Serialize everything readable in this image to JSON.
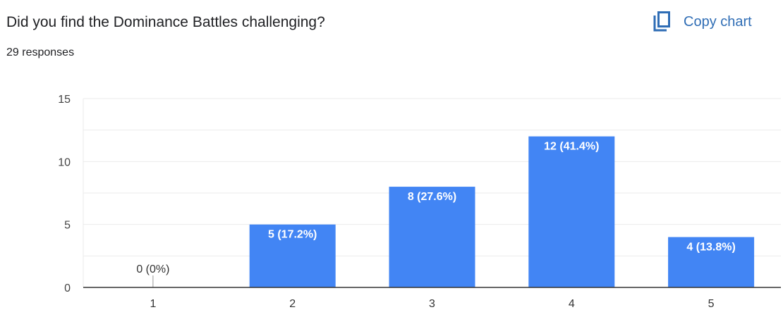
{
  "header": {
    "title": "Did you find the Dominance Battles challenging?",
    "responses": "29 responses",
    "copy_label": "Copy chart",
    "copy_icon": "copy-icon"
  },
  "chart_data": {
    "type": "bar",
    "categories": [
      "1",
      "2",
      "3",
      "4",
      "5"
    ],
    "values": [
      0,
      5,
      8,
      12,
      4
    ],
    "data_labels": [
      "0 (0%)",
      "5 (17.2%)",
      "8 (27.6%)",
      "12 (41.4%)",
      "4 (13.8%)"
    ],
    "yticks": [
      "0",
      "5",
      "10",
      "15"
    ],
    "ylim": [
      0,
      15
    ],
    "grid": true,
    "bar_color": "#4285f4",
    "title": "",
    "xlabel": "",
    "ylabel": ""
  }
}
